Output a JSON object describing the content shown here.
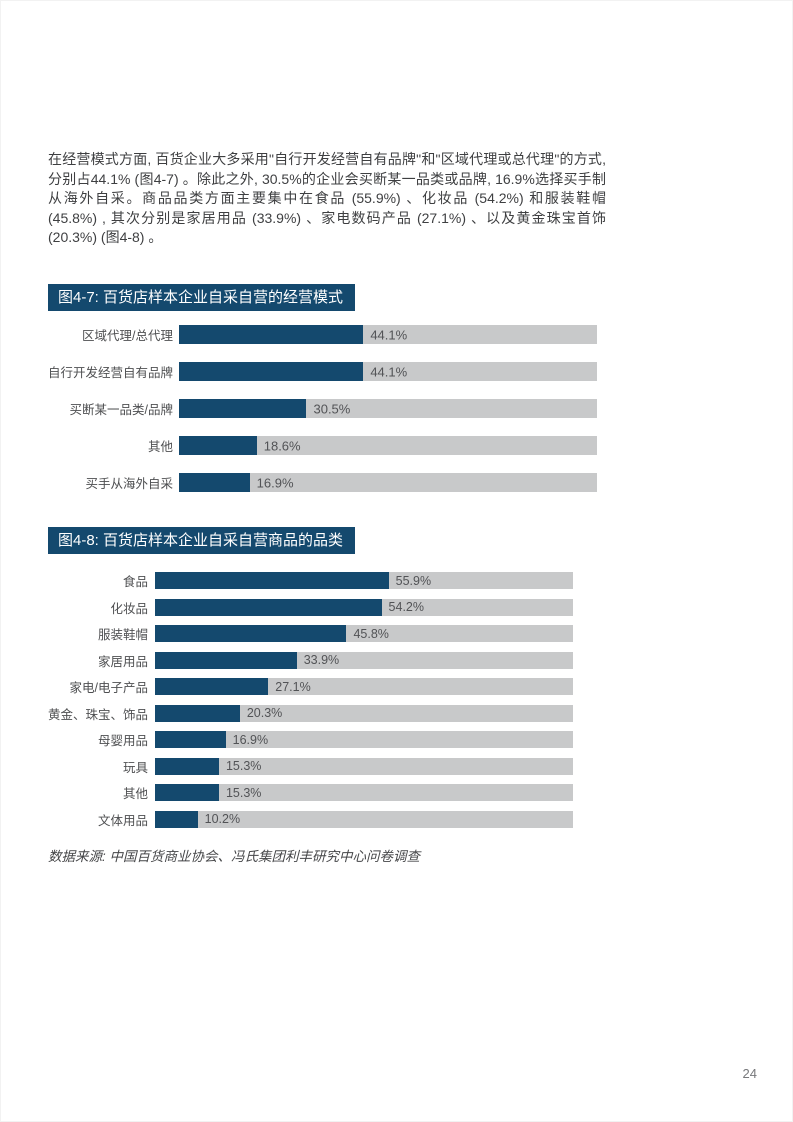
{
  "page": {
    "paragraph": "在经营模式方面, 百货企业大多采用\"自行开发经营自有品牌\"和\"区域代理或总代理\"的方式, 分别占44.1% (图4-7) 。除此之外, 30.5%的企业会买断某一品类或品牌, 16.9%选择买手制从海外自采。商品品类方面主要集中在食品 (55.9%) 、化妆品 (54.2%) 和服装鞋帽 (45.8%) , 其次分别是家居用品 (33.9%) 、家电数码产品 (27.1%) 、以及黄金珠宝首饰 (20.3%) (图4-8) 。",
    "source_note": "数据来源: 中国百货商业协会、冯氏集团利丰研究中心问卷调查",
    "page_number": "24"
  },
  "colors": {
    "bar_fill": "#14496e",
    "bar_track": "#c8c9ca",
    "title_bar_bg": "#14496e",
    "title_bar_text": "#ffffff"
  },
  "chart_data": [
    {
      "type": "bar",
      "orientation": "horizontal",
      "title": "图4-7: 百货店样本企业自采自营的经营模式",
      "categories": [
        "区域代理/总代理",
        "自行开发经营自有品牌",
        "买断某一品类/品牌",
        "其他",
        "买手从海外自采"
      ],
      "values": [
        44.1,
        44.1,
        30.5,
        18.6,
        16.9
      ],
      "value_labels": [
        "44.1%",
        "44.1%",
        "30.5%",
        "18.6%",
        "16.9%"
      ],
      "xlim": [
        0,
        100
      ],
      "grid": false,
      "legend": false
    },
    {
      "type": "bar",
      "orientation": "horizontal",
      "title": "图4-8: 百货店样本企业自采自营商品的品类",
      "categories": [
        "食品",
        "化妆品",
        "服装鞋帽",
        "家居用品",
        "家电/电子产品",
        "黄金、珠宝、饰品",
        "母婴用品",
        "玩具",
        "其他",
        "文体用品"
      ],
      "values": [
        55.9,
        54.2,
        45.8,
        33.9,
        27.1,
        20.3,
        16.9,
        15.3,
        15.3,
        10.2
      ],
      "value_labels": [
        "55.9%",
        "54.2%",
        "45.8%",
        "33.9%",
        "27.1%",
        "20.3%",
        "16.9%",
        "15.3%",
        "15.3%",
        "10.2%"
      ],
      "xlim": [
        0,
        100
      ],
      "grid": false,
      "legend": false
    }
  ]
}
